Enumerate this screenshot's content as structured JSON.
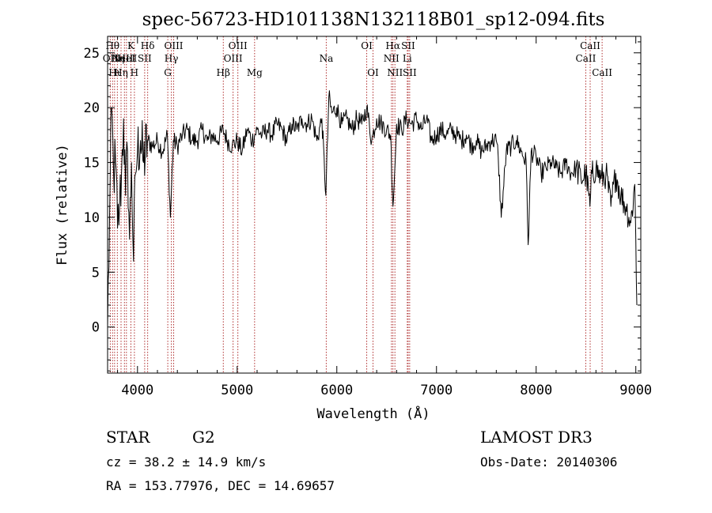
{
  "chart_data": {
    "type": "line",
    "title": "spec-56723-HD101138N132118B01_sp12-094.fits",
    "xlabel": "Wavelength (Å)",
    "ylabel": "Flux (relative)",
    "xlim": [
      3700,
      9050
    ],
    "ylim": [
      -4.2,
      26.5
    ],
    "x_ticks": [
      4000,
      5000,
      6000,
      7000,
      8000,
      9000
    ],
    "y_ticks": [
      0,
      5,
      10,
      15,
      20,
      25
    ],
    "grid": false,
    "series": [
      {
        "name": "flux",
        "color": "#000000",
        "x": [
          3700,
          3720,
          3740,
          3760,
          3780,
          3800,
          3820,
          3840,
          3860,
          3880,
          3900,
          3920,
          3940,
          3960,
          3980,
          4000,
          4030,
          4060,
          4100,
          4150,
          4200,
          4250,
          4300,
          4330,
          4360,
          4400,
          4450,
          4500,
          4550,
          4600,
          4650,
          4700,
          4750,
          4800,
          4860,
          4900,
          4950,
          5000,
          5050,
          5100,
          5150,
          5200,
          5250,
          5300,
          5350,
          5400,
          5450,
          5500,
          5550,
          5600,
          5650,
          5700,
          5750,
          5800,
          5850,
          5890,
          5920,
          5950,
          6000,
          6050,
          6100,
          6150,
          6200,
          6250,
          6300,
          6350,
          6400,
          6450,
          6500,
          6540,
          6563,
          6580,
          6600,
          6650,
          6700,
          6750,
          6800,
          6850,
          6900,
          6950,
          7000,
          7050,
          7100,
          7150,
          7200,
          7250,
          7300,
          7350,
          7400,
          7450,
          7500,
          7550,
          7600,
          7620,
          7650,
          7700,
          7750,
          7800,
          7850,
          7900,
          7920,
          7950,
          8000,
          8050,
          8100,
          8150,
          8200,
          8250,
          8300,
          8350,
          8400,
          8450,
          8500,
          8540,
          8560,
          8600,
          8650,
          8700,
          8750,
          8800,
          8850,
          8900,
          8950,
          8990,
          9000,
          9010
        ],
        "y": [
          0,
          10,
          20,
          14,
          15,
          9,
          11,
          14,
          19,
          12,
          16,
          8,
          15,
          6,
          14,
          16,
          17,
          15,
          17,
          16.5,
          17,
          16,
          17.5,
          10,
          17,
          16.5,
          17.5,
          18,
          17,
          17,
          18,
          17,
          17.5,
          17,
          18,
          17,
          16.5,
          17,
          16,
          18,
          17,
          18,
          17.5,
          18,
          17.5,
          18.5,
          18,
          17,
          18.5,
          18,
          19,
          18.5,
          19,
          17,
          19,
          12,
          21,
          19.5,
          20,
          18.5,
          19,
          18,
          19,
          18.5,
          20,
          17,
          19,
          18.5,
          18,
          17.5,
          11,
          14,
          18.5,
          18,
          19,
          18.5,
          19,
          18,
          19,
          17,
          17.5,
          18,
          17.5,
          18,
          17.5,
          17,
          17.5,
          16.5,
          17,
          16,
          16.5,
          17,
          17,
          15.5,
          10,
          16,
          16.5,
          17,
          16,
          15,
          7.5,
          16,
          15.5,
          14,
          14.5,
          15,
          14.5,
          14,
          15,
          14,
          14.5,
          13.5,
          14,
          11,
          14,
          14.5,
          13.5,
          14,
          11,
          14,
          12,
          11,
          9.5,
          13,
          8,
          2
        ]
      }
    ],
    "lines": [
      {
        "wavelength": 3727,
        "label": "OII",
        "row": 2
      },
      {
        "wavelength": 3750,
        "label": "Hθ",
        "row": 1
      },
      {
        "wavelength": 3770,
        "label": "Hι",
        "row": 3
      },
      {
        "wavelength": 3798,
        "label": "Hη",
        "row": 2
      },
      {
        "wavelength": 3835,
        "label": "Hη",
        "row": 3
      },
      {
        "wavelength": 3869,
        "label": "NeIII",
        "row": 2
      },
      {
        "wavelength": 3889,
        "label": "HeI",
        "row": 2
      },
      {
        "wavelength": 3934,
        "label": "K",
        "row": 1
      },
      {
        "wavelength": 3969,
        "label": "H",
        "row": 3
      },
      {
        "wavelength": 4072,
        "label": "SII",
        "row": 2
      },
      {
        "wavelength": 4102,
        "label": "Hδ",
        "row": 1
      },
      {
        "wavelength": 4304,
        "label": "G",
        "row": 3
      },
      {
        "wavelength": 4340,
        "label": "Hγ",
        "row": 2
      },
      {
        "wavelength": 4363,
        "label": "OIII",
        "row": 1
      },
      {
        "wavelength": 4861,
        "label": "Hβ",
        "row": 3
      },
      {
        "wavelength": 4959,
        "label": "OIII",
        "row": 2
      },
      {
        "wavelength": 5007,
        "label": "OIII",
        "row": 1
      },
      {
        "wavelength": 5175,
        "label": "Mg",
        "row": 3
      },
      {
        "wavelength": 5894,
        "label": "Na",
        "row": 2
      },
      {
        "wavelength": 6300,
        "label": "OI",
        "row": 1
      },
      {
        "wavelength": 6363,
        "label": "OI",
        "row": 3
      },
      {
        "wavelength": 6548,
        "label": "NII",
        "row": 2
      },
      {
        "wavelength": 6563,
        "label": "Hα",
        "row": 1
      },
      {
        "wavelength": 6583,
        "label": "NII",
        "row": 3
      },
      {
        "wavelength": 6707,
        "label": "Li",
        "row": 2
      },
      {
        "wavelength": 6716,
        "label": "SII",
        "row": 1
      },
      {
        "wavelength": 6731,
        "label": "SII",
        "row": 3
      },
      {
        "wavelength": 8498,
        "label": "CaII",
        "row": 2
      },
      {
        "wavelength": 8542,
        "label": "CaII",
        "row": 1
      },
      {
        "wavelength": 8662,
        "label": "CaII",
        "row": 3
      }
    ]
  },
  "info": {
    "class": "STAR",
    "subclass": "G2",
    "survey": "LAMOST DR3",
    "cz": "cz = 38.2 ± 14.9 km/s",
    "obs_date": "Obs-Date: 20140306",
    "radec": "RA = 153.77976, DEC =  14.69657"
  }
}
